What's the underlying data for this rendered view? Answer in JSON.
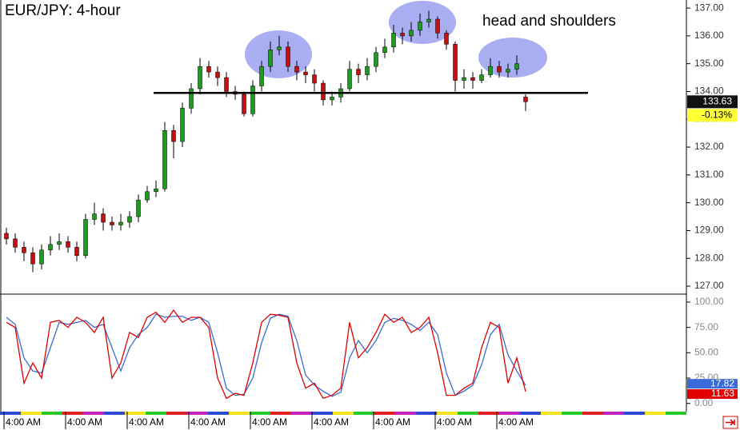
{
  "chart_data": [
    {
      "type": "candlestick",
      "title": "EUR/JPY: 4-hour",
      "annotation": "head and shoulders",
      "categories": [
        "4:00 AM",
        null,
        null,
        null,
        null,
        null,
        null,
        "4:00 AM",
        null,
        null,
        null,
        null,
        null,
        null,
        "4:00 AM",
        null,
        null,
        null,
        null,
        null,
        null,
        "4:00 AM",
        null,
        null,
        null,
        null,
        null,
        null,
        "4:00 AM",
        null,
        null,
        null,
        null,
        null,
        null,
        "4:00 AM",
        null,
        null,
        null,
        null,
        null,
        null,
        "4:00 AM",
        null,
        null,
        null,
        null,
        null,
        null,
        "4:00 AM",
        null,
        null,
        null,
        null,
        null,
        null,
        "4:00 AM",
        null,
        null,
        null
      ],
      "open": [
        128.9,
        128.7,
        128.4,
        128.2,
        127.8,
        128.3,
        128.5,
        128.6,
        128.4,
        128.1,
        129.4,
        129.6,
        129.3,
        129.2,
        129.3,
        129.5,
        130.1,
        130.4,
        130.5,
        132.6,
        132.2,
        133.4,
        134.1,
        134.9,
        134.7,
        134.5,
        134.0,
        133.9,
        133.2,
        134.2,
        134.9,
        135.5,
        135.6,
        134.9,
        134.7,
        134.6,
        134.3,
        133.7,
        133.8,
        134.1,
        134.8,
        134.6,
        134.9,
        135.4,
        135.6,
        136.1,
        136.0,
        136.2,
        136.5,
        136.6,
        136.1,
        135.7,
        134.4,
        134.5,
        134.4,
        134.6,
        134.9,
        134.7,
        134.8,
        133.8
      ],
      "high": [
        129.1,
        128.9,
        128.6,
        128.4,
        128.5,
        128.8,
        128.9,
        128.8,
        128.6,
        129.6,
        130.0,
        129.8,
        129.5,
        129.6,
        129.7,
        130.3,
        130.6,
        130.8,
        132.9,
        132.8,
        133.6,
        134.3,
        135.2,
        135.1,
        134.9,
        134.7,
        134.2,
        134.0,
        134.4,
        135.1,
        135.8,
        136.0,
        135.8,
        135.1,
        134.9,
        134.8,
        134.4,
        134.0,
        134.3,
        135.1,
        135.0,
        135.2,
        135.6,
        135.9,
        136.4,
        136.3,
        136.5,
        136.8,
        136.9,
        136.7,
        136.2,
        135.8,
        134.8,
        134.7,
        134.8,
        135.2,
        135.1,
        135.0,
        135.3,
        133.9
      ],
      "low": [
        128.5,
        128.2,
        127.9,
        127.5,
        127.6,
        128.1,
        128.3,
        128.2,
        127.9,
        128.0,
        129.2,
        129.0,
        129.0,
        129.0,
        129.1,
        129.3,
        130.0,
        130.2,
        130.4,
        131.6,
        132.0,
        133.2,
        133.9,
        134.5,
        134.2,
        133.8,
        133.7,
        133.1,
        133.1,
        134.0,
        134.7,
        135.3,
        134.7,
        134.4,
        134.3,
        134.0,
        133.5,
        133.5,
        133.6,
        134.0,
        134.3,
        134.4,
        134.7,
        135.2,
        135.4,
        135.7,
        135.8,
        136.0,
        136.3,
        135.9,
        135.5,
        134.0,
        134.1,
        134.1,
        134.3,
        134.5,
        134.5,
        134.5,
        134.6,
        133.3
      ],
      "close": [
        128.7,
        128.4,
        128.2,
        127.8,
        128.3,
        128.5,
        128.6,
        128.4,
        128.1,
        129.4,
        129.6,
        129.3,
        129.2,
        129.3,
        129.5,
        130.1,
        130.4,
        130.5,
        132.6,
        132.2,
        133.4,
        134.1,
        134.9,
        134.7,
        134.5,
        134.0,
        133.9,
        133.2,
        134.2,
        134.9,
        135.5,
        135.6,
        134.9,
        134.7,
        134.6,
        134.3,
        133.7,
        133.8,
        134.1,
        134.8,
        134.6,
        134.9,
        135.4,
        135.6,
        136.1,
        136.0,
        136.2,
        136.5,
        136.6,
        136.1,
        135.7,
        134.4,
        134.5,
        134.4,
        134.6,
        134.9,
        134.7,
        134.8,
        135.0,
        133.63
      ],
      "up_color": "#1e9a1e",
      "down_color": "#c41010",
      "neckline": 133.95,
      "change_label": "-0.13%",
      "ylim": [
        126.8,
        137.29
      ],
      "yticks": [
        {
          "value": 127,
          "label": "127.00"
        },
        {
          "value": 128,
          "label": "128.00"
        },
        {
          "value": 129,
          "label": "129.00"
        },
        {
          "value": 130,
          "label": "130.00"
        },
        {
          "value": 131,
          "label": "131.00"
        },
        {
          "value": 132,
          "label": "132.00"
        },
        {
          "value": 133,
          "label": "133.00"
        },
        {
          "value": 134,
          "label": "134.00"
        },
        {
          "value": 135,
          "label": "135.00"
        },
        {
          "value": 136,
          "label": "136.00"
        },
        {
          "value": 137,
          "label": "137.00"
        }
      ]
    },
    {
      "type": "line",
      "series": [
        {
          "color": "#3a6bd8",
          "values": [
            85,
            78,
            45,
            32,
            30,
            55,
            80,
            78,
            80,
            82,
            75,
            78,
            55,
            32,
            55,
            68,
            75,
            88,
            85,
            86,
            86,
            82,
            85,
            80,
            50,
            15,
            8,
            9,
            25,
            60,
            84,
            88,
            86,
            62,
            28,
            18,
            12,
            7,
            11,
            45,
            62,
            50,
            62,
            80,
            84,
            82,
            78,
            72,
            80,
            68,
            30,
            8,
            12,
            18,
            38,
            68,
            78,
            48,
            32,
            17.82
          ]
        },
        {
          "color": "#e00000",
          "values": [
            80,
            75,
            20,
            40,
            25,
            80,
            82,
            75,
            85,
            80,
            70,
            85,
            25,
            40,
            70,
            65,
            85,
            90,
            80,
            92,
            80,
            85,
            85,
            75,
            25,
            5,
            10,
            8,
            40,
            80,
            88,
            87,
            85,
            40,
            15,
            20,
            5,
            8,
            15,
            80,
            45,
            55,
            70,
            88,
            80,
            85,
            70,
            75,
            85,
            50,
            8,
            8,
            15,
            20,
            55,
            80,
            75,
            20,
            45,
            11.63
          ]
        }
      ],
      "ylim": [
        -8.1,
        105.5
      ],
      "yticks": [
        {
          "value": 0,
          "label": "0.00"
        },
        {
          "value": 25,
          "label": "25.00"
        },
        {
          "value": 50,
          "label": "50.00"
        },
        {
          "value": 75,
          "label": "75.00"
        },
        {
          "value": 100,
          "label": "100.00"
        }
      ]
    }
  ]
}
